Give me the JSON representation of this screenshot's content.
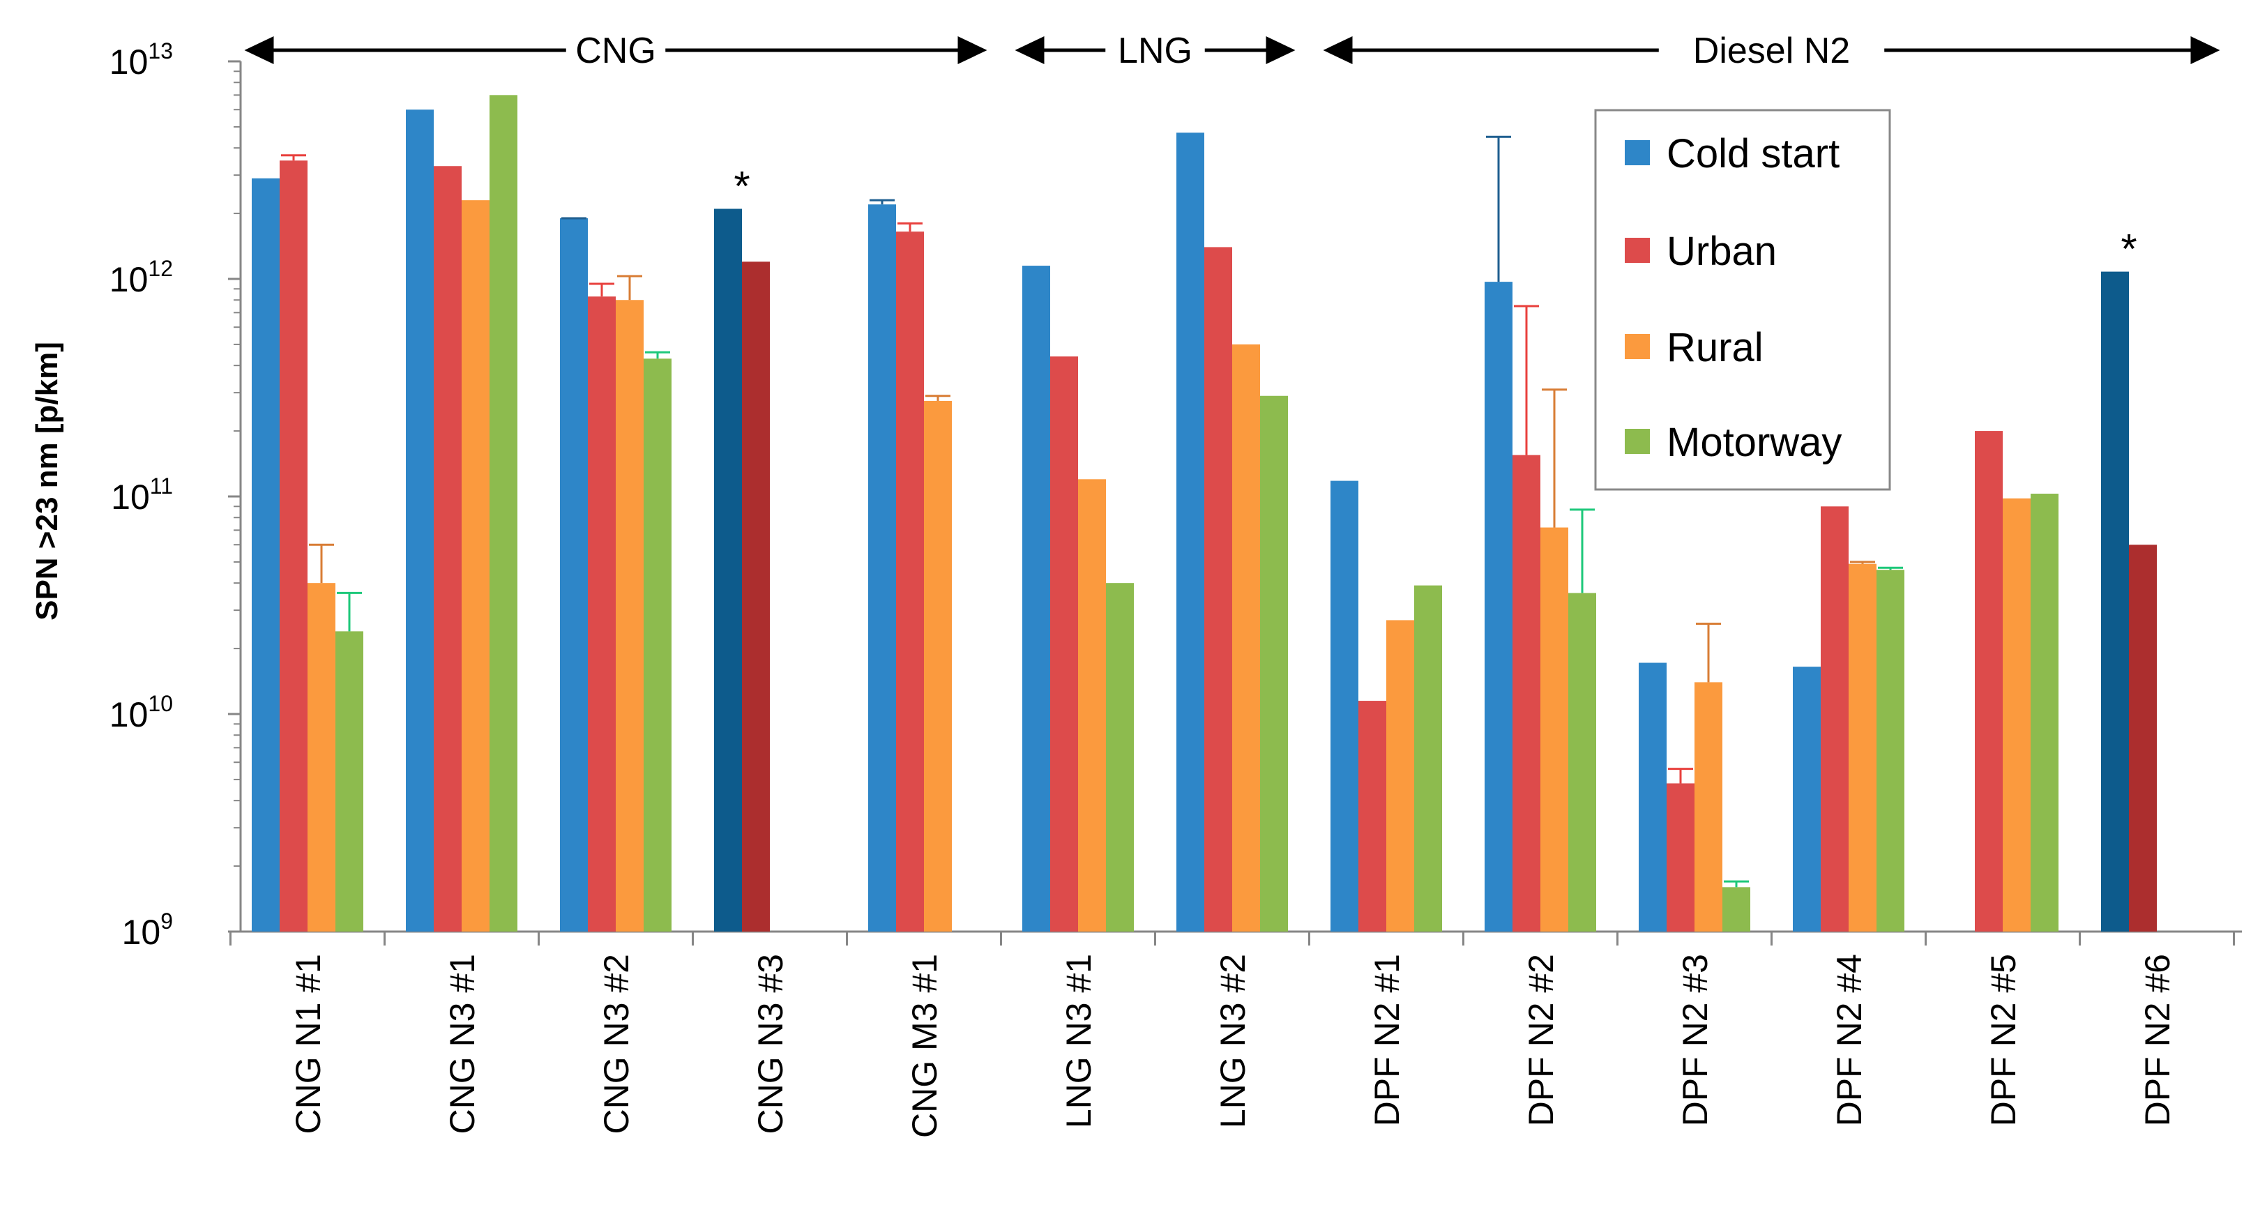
{
  "chart_data": {
    "type": "bar",
    "scale": "log10",
    "ylabel": "SPN >23 nm [p/km]",
    "ylim": [
      1000000000.0,
      10000000000000.0
    ],
    "yticks": [
      {
        "base": "10",
        "exp": "9",
        "value": 1000000000.0
      },
      {
        "base": "10",
        "exp": "10",
        "value": 10000000000.0
      },
      {
        "base": "10",
        "exp": "11",
        "value": 100000000000.0
      },
      {
        "base": "10",
        "exp": "12",
        "value": 1000000000000.0
      },
      {
        "base": "10",
        "exp": "13",
        "value": 10000000000000.0
      }
    ],
    "categories": [
      "CNG N1 #1",
      "CNG N3 #1",
      "CNG N3 #2",
      "CNG N3 #3",
      "CNG M3 #1",
      "LNG N3 #1",
      "LNG N3 #2",
      "DPF N2 #1",
      "DPF N2 #2",
      "DPF N2 #3",
      "DPF N2 #4",
      "DPF N2 #5",
      "DPF N2 #6"
    ],
    "series": [
      {
        "name": "Cold start",
        "color": "#2e86c8",
        "errcolor": "#1f5f90",
        "values": [
          2900000000000.0,
          6000000000000.0,
          1900000000000.0,
          2100000000000.0,
          2200000000000.0,
          1150000000000.0,
          4700000000000.0,
          118000000000.0,
          970000000000.0,
          17200000000.0,
          16500000000.0,
          null,
          1080000000000.0
        ],
        "errors": [
          null,
          null,
          1900000000000.0,
          null,
          2300000000000.0,
          null,
          null,
          null,
          4500000000000.0,
          null,
          null,
          null,
          null
        ]
      },
      {
        "name": "Urban",
        "color": "#dd4b4b",
        "errcolor": "#e8403d",
        "values": [
          3500000000000.0,
          3300000000000.0,
          830000000000.0,
          1200000000000.0,
          1650000000000.0,
          440000000000.0,
          1400000000000.0,
          11500000000.0,
          155000000000.0,
          4800000000.0,
          90000000000.0,
          200000000000.0,
          60000000000.0
        ],
        "errors": [
          3700000000000.0,
          null,
          950000000000.0,
          null,
          1800000000000.0,
          null,
          null,
          null,
          750000000000.0,
          5600000000.0,
          null,
          null,
          null
        ]
      },
      {
        "name": "Rural",
        "color": "#fb9a3e",
        "errcolor": "#d87d35",
        "values": [
          40000000000.0,
          2300000000000.0,
          800000000000.0,
          null,
          275000000000.0,
          120000000000.0,
          500000000000.0,
          27000000000.0,
          72000000000.0,
          14000000000.0,
          49000000000.0,
          98000000000.0,
          null
        ],
        "errors": [
          60000000000.0,
          null,
          1030000000000.0,
          null,
          290000000000.0,
          null,
          null,
          null,
          310000000000.0,
          26000000000.0,
          50000000000.0,
          null,
          null
        ]
      },
      {
        "name": "Motorway",
        "color": "#8dbb4e",
        "errcolor": "#1dc87a",
        "values": [
          24000000000.0,
          7000000000000.0,
          430000000000.0,
          null,
          null,
          40000000000.0,
          290000000000.0,
          39000000000.0,
          36000000000.0,
          1600000000.0,
          46000000000.0,
          103000000000.0,
          null
        ],
        "errors": [
          36000000000.0,
          null,
          460000000000.0,
          null,
          null,
          null,
          null,
          null,
          87000000000.0,
          1700000000.0,
          47000000000.0,
          null,
          null
        ]
      }
    ],
    "dark_overrides": [
      {
        "category": "CNG N3 #3",
        "series": "Cold start",
        "color": "#0d5b8c"
      },
      {
        "category": "CNG N3 #3",
        "series": "Urban",
        "color": "#ac2e2e"
      },
      {
        "category": "DPF N2 #6",
        "series": "Cold start",
        "color": "#0d5b8c"
      },
      {
        "category": "DPF N2 #6",
        "series": "Urban",
        "color": "#ac2e2e"
      }
    ],
    "annotations": [
      {
        "text": "*",
        "category": "CNG N3 #3"
      },
      {
        "text": "*",
        "category": "DPF N2 #6"
      }
    ],
    "groups": [
      {
        "label": "CNG",
        "from": "CNG N1 #1",
        "to": "CNG M3 #1"
      },
      {
        "label": "LNG",
        "from": "LNG N3 #1",
        "to": "LNG N3 #2"
      },
      {
        "label": "Diesel N2",
        "from": "DPF N2 #1",
        "to": "DPF N2 #6"
      }
    ],
    "legend_position": "top-right"
  }
}
